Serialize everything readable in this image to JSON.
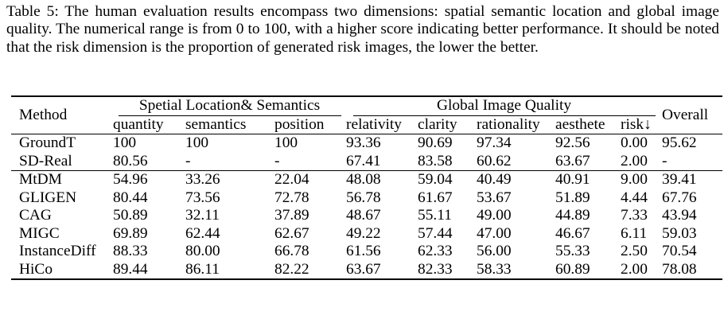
{
  "caption": "Table 5: The human evaluation results encompass two dimensions: spatial semantic location and global image quality. The numerical range is from 0 to 100, with a higher score indicating better performance. It should be noted that the risk dimension is the proportion of generated risk images, the lower the better.",
  "table": {
    "method_header": "Method",
    "group1": "Spetial Location& Semantics",
    "group2": "Global Image Quality",
    "overall_header": "Overall",
    "subheaders": [
      "quantity",
      "semantics",
      "position",
      "relativity",
      "clarity",
      "rationality",
      "aesthete",
      "risk↓"
    ],
    "reference_rows": [
      {
        "method": "GroundT",
        "values": [
          "100",
          "100",
          "100",
          "93.36",
          "90.69",
          "97.34",
          "92.56",
          "0.00",
          "95.62"
        ]
      },
      {
        "method": "SD-Real",
        "values": [
          "80.56",
          "-",
          "-",
          "67.41",
          "83.58",
          "60.62",
          "63.67",
          "2.00",
          "-"
        ]
      }
    ],
    "method_rows": [
      {
        "method": "MtDM",
        "values": [
          "54.96",
          "33.26",
          "22.04",
          "48.08",
          "59.04",
          "40.49",
          "40.91",
          "9.00",
          "39.41"
        ]
      },
      {
        "method": "GLIGEN",
        "values": [
          "80.44",
          "73.56",
          "72.78",
          "56.78",
          "61.67",
          "53.67",
          "51.89",
          "4.44",
          "67.76"
        ]
      },
      {
        "method": "CAG",
        "values": [
          "50.89",
          "32.11",
          "37.89",
          "48.67",
          "55.11",
          "49.00",
          "44.89",
          "7.33",
          "43.94"
        ]
      },
      {
        "method": "MIGC",
        "values": [
          "69.89",
          "62.44",
          "62.67",
          "49.22",
          "57.44",
          "47.00",
          "46.67",
          "6.11",
          "59.03"
        ]
      },
      {
        "method": "InstanceDiff",
        "values": [
          "88.33",
          "80.00",
          "66.78",
          "61.56",
          "62.33",
          "56.00",
          "55.33",
          "2.50",
          "70.54"
        ]
      },
      {
        "method": "HiCo",
        "values": [
          "89.44",
          "86.11",
          "82.22",
          "63.67",
          "82.33",
          "58.33",
          "60.89",
          "2.00",
          "78.08"
        ]
      }
    ]
  }
}
